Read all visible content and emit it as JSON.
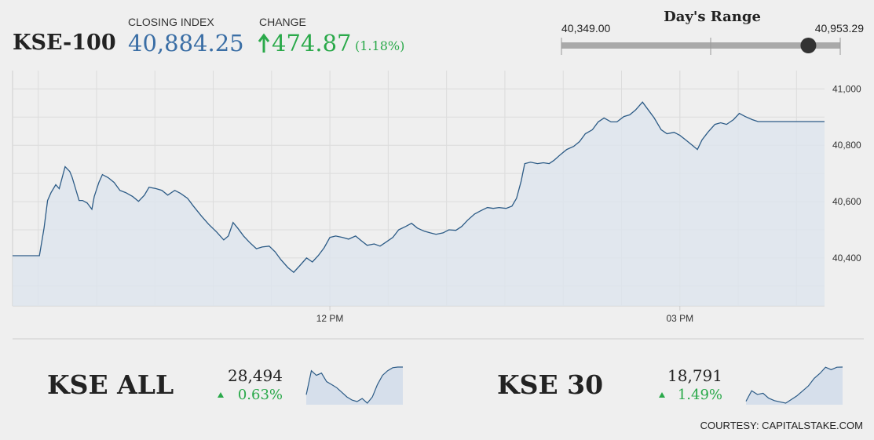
{
  "header": {
    "name": "KSE-100",
    "closing_label": "CLOSING INDEX",
    "closing_index": {
      "value": 40884.25,
      "label": "40,884.25"
    },
    "change_label": "CHANGE",
    "change": "474.87",
    "change_pct": "(1.18%)",
    "day_range": {
      "title": "Day's Range",
      "low": {
        "value": 40349,
        "label": "40,349.00"
      },
      "high": {
        "value": 40953.29,
        "label": "40,953.29"
      }
    }
  },
  "chart_data": {
    "type": "line",
    "x": [
      9.28,
      9.51,
      9.55,
      9.58,
      9.61,
      9.65,
      9.68,
      9.73,
      9.77,
      9.79,
      9.82,
      9.85,
      9.88,
      9.92,
      9.96,
      9.98,
      10.02,
      10.05,
      10.1,
      10.15,
      10.2,
      10.25,
      10.31,
      10.36,
      10.41,
      10.45,
      10.51,
      10.56,
      10.61,
      10.67,
      10.72,
      10.78,
      10.83,
      10.9,
      10.96,
      11.03,
      11.09,
      11.13,
      11.17,
      11.21,
      11.26,
      11.31,
      11.37,
      11.42,
      11.48,
      11.53,
      11.58,
      11.64,
      11.69,
      11.74,
      11.8,
      11.85,
      11.9,
      11.95,
      12.0,
      12.05,
      12.11,
      12.16,
      12.22,
      12.27,
      12.32,
      12.38,
      12.43,
      12.48,
      12.54,
      12.59,
      12.65,
      12.7,
      12.75,
      12.81,
      12.86,
      12.91,
      12.97,
      13.02,
      13.08,
      13.13,
      13.18,
      13.24,
      13.29,
      13.35,
      13.4,
      13.45,
      13.51,
      13.56,
      13.6,
      13.64,
      13.67,
      13.72,
      13.78,
      13.83,
      13.88,
      13.92,
      13.98,
      14.03,
      14.09,
      14.14,
      14.19,
      14.25,
      14.3,
      14.35,
      14.41,
      14.46,
      14.52,
      14.57,
      14.62,
      14.68,
      14.73,
      14.78,
      14.84,
      14.89,
      14.95,
      15.0,
      15.05,
      15.11,
      15.15,
      15.19,
      15.24,
      15.3,
      15.35,
      15.4,
      15.46,
      15.51,
      15.56,
      15.62,
      15.67,
      16.24
    ],
    "series": [
      {
        "name": "KSE-100",
        "color": "#2c5b86",
        "values": [
          40408,
          40408,
          40506,
          40604,
          40632,
          40660,
          40646,
          40724,
          40707,
          40687,
          40646,
          40604,
          40604,
          40595,
          40573,
          40618,
          40668,
          40696,
          40685,
          40668,
          40640,
          40632,
          40618,
          40601,
          40623,
          40651,
          40646,
          40640,
          40623,
          40640,
          40629,
          40612,
          40584,
          40548,
          40520,
          40492,
          40464,
          40478,
          40526,
          40506,
          40478,
          40456,
          40433,
          40439,
          40442,
          40422,
          40394,
          40366,
          40349,
          40372,
          40400,
          40386,
          40408,
          40436,
          40473,
          40478,
          40473,
          40467,
          40478,
          40461,
          40445,
          40450,
          40442,
          40456,
          40473,
          40500,
          40512,
          40523,
          40506,
          40495,
          40489,
          40484,
          40489,
          40500,
          40498,
          40512,
          40534,
          40556,
          40567,
          40579,
          40576,
          40579,
          40576,
          40584,
          40612,
          40673,
          40735,
          40740,
          40735,
          40738,
          40735,
          40746,
          40768,
          40785,
          40796,
          40813,
          40841,
          40855,
          40883,
          40897,
          40883,
          40883,
          40902,
          40908,
          40925,
          40953,
          40925,
          40897,
          40855,
          40841,
          40846,
          40835,
          40819,
          40799,
          40785,
          40819,
          40846,
          40874,
          40880,
          40874,
          40891,
          40913,
          40902,
          40891,
          40884,
          40884
        ]
      }
    ],
    "xlim": [
      9.28,
      16.24
    ],
    "xticks": [
      {
        "value": 12,
        "label": "12 PM"
      },
      {
        "value": 15,
        "label": "03 PM"
      }
    ],
    "ylim": [
      40230,
      41065
    ],
    "yticks": [
      {
        "value": 40400,
        "label": "40,400"
      },
      {
        "value": 40600,
        "label": "40,600"
      },
      {
        "value": 40800,
        "label": "40,800"
      },
      {
        "value": 41000,
        "label": "41,000"
      }
    ],
    "grid": true
  },
  "indices": [
    {
      "name": "KSE ALL",
      "value": "28,494",
      "change": "0.63%",
      "values": [
        28315,
        28470,
        28440,
        28455,
        28400,
        28380,
        28360,
        28330,
        28300,
        28280,
        28270,
        28290,
        28260,
        28300,
        28380,
        28440,
        28470,
        28490,
        28494,
        28494
      ]
    },
    {
      "name": "KSE 30",
      "value": "18,791",
      "change": "1.49%",
      "values": [
        18515,
        18600,
        18570,
        18580,
        18540,
        18520,
        18510,
        18500,
        18530,
        18560,
        18600,
        18640,
        18700,
        18740,
        18790,
        18770,
        18790,
        18791
      ]
    }
  ],
  "footer": "COURTESY: CAPITALSTAKE.COM"
}
